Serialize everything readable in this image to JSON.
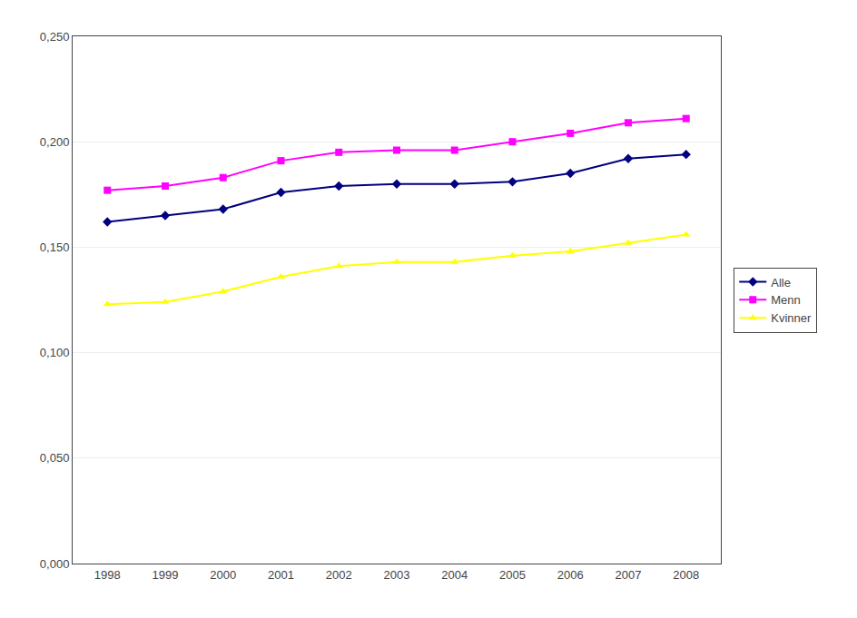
{
  "chart_data": {
    "type": "line",
    "x": [
      1998,
      1999,
      2000,
      2001,
      2002,
      2003,
      2004,
      2005,
      2006,
      2007,
      2008
    ],
    "series": [
      {
        "name": "Alle",
        "color": "#000080",
        "marker": "diamond",
        "values": [
          0.162,
          0.165,
          0.168,
          0.176,
          0.179,
          0.18,
          0.18,
          0.181,
          0.185,
          0.192,
          0.194
        ]
      },
      {
        "name": "Menn",
        "color": "#FF00FF",
        "marker": "square",
        "values": [
          0.177,
          0.179,
          0.183,
          0.191,
          0.195,
          0.196,
          0.196,
          0.2,
          0.204,
          0.209,
          0.211
        ]
      },
      {
        "name": "Kvinner",
        "color": "#FFFF00",
        "marker": "triangle-up",
        "values": [
          0.123,
          0.124,
          0.129,
          0.136,
          0.141,
          0.143,
          0.143,
          0.146,
          0.148,
          0.152,
          0.156
        ]
      }
    ],
    "xlim": [
      1997.4,
      2008.6
    ],
    "xticks": [
      1998,
      1999,
      2000,
      2001,
      2002,
      2003,
      2004,
      2005,
      2006,
      2007,
      2008
    ],
    "ylim": [
      0.0,
      0.25
    ],
    "yticks": [
      {
        "value": 0.0,
        "label": "0,000"
      },
      {
        "value": 0.05,
        "label": "0,050"
      },
      {
        "value": 0.1,
        "label": "0,100"
      },
      {
        "value": 0.15,
        "label": "0,150"
      },
      {
        "value": 0.2,
        "label": "0,200"
      },
      {
        "value": 0.25,
        "label": "0,250"
      }
    ],
    "grid": "y",
    "legend": "right"
  }
}
